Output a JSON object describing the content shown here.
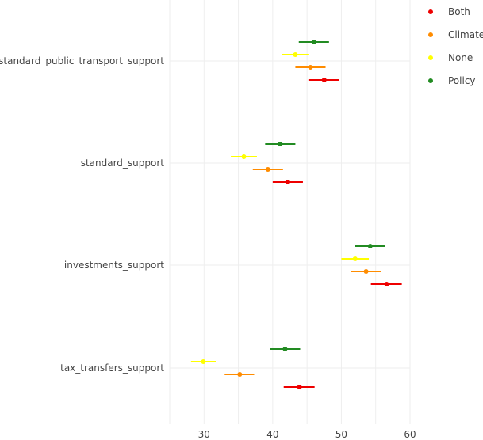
{
  "chart_data": {
    "type": "scatter",
    "subtype": "forest-plot",
    "title": "",
    "xlabel": "",
    "ylabel": "",
    "xlim": [
      25,
      60
    ],
    "xticks": [
      30,
      40,
      50,
      60
    ],
    "xtick_labels": [
      "30",
      "40",
      "50",
      "60"
    ],
    "grid": true,
    "legend_position": "top-right",
    "categories": [
      "standard_public_transport_support",
      "standard_support",
      "investments_support",
      "tax_transfers_support"
    ],
    "series": [
      {
        "name": "Both",
        "color": "#ee0000",
        "values": [
          47.5,
          42.2,
          56.6,
          43.9
        ],
        "ci_low": [
          45.2,
          40.0,
          54.3,
          41.6
        ],
        "ci_high": [
          49.7,
          44.4,
          58.8,
          46.1
        ]
      },
      {
        "name": "Climate",
        "color": "#ff8c00",
        "values": [
          45.5,
          39.3,
          53.6,
          35.2
        ],
        "ci_low": [
          43.3,
          37.1,
          51.4,
          33.0
        ],
        "ci_high": [
          47.7,
          41.5,
          55.8,
          37.3
        ]
      },
      {
        "name": "None",
        "color": "#ffff00",
        "values": [
          43.3,
          35.8,
          52.0,
          29.9
        ],
        "ci_low": [
          41.4,
          33.9,
          50.0,
          28.1
        ],
        "ci_high": [
          45.2,
          37.7,
          54.0,
          31.7
        ]
      },
      {
        "name": "Policy",
        "color": "#228b22",
        "values": [
          46.0,
          41.1,
          54.2,
          41.8
        ],
        "ci_low": [
          43.8,
          38.9,
          52.0,
          39.6
        ],
        "ci_high": [
          48.2,
          43.3,
          56.4,
          44.0
        ]
      }
    ]
  }
}
